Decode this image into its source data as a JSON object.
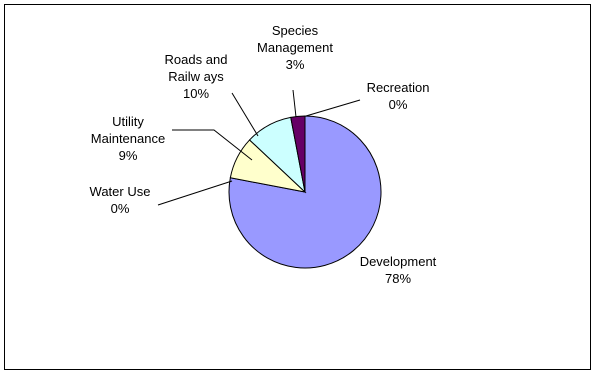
{
  "chart_data": {
    "type": "pie",
    "title": "",
    "slices": [
      {
        "name": "Development",
        "label_lines": [
          "Development",
          "78%"
        ],
        "percent": 78,
        "color": "#9999ff"
      },
      {
        "name": "Water Use",
        "label_lines": [
          "Water Use",
          "0%"
        ],
        "percent": 0,
        "color": "#663399"
      },
      {
        "name": "Utility Maintenance",
        "label_lines": [
          "Utility",
          "Maintenance",
          "9%"
        ],
        "percent": 9,
        "color": "#ffffcc"
      },
      {
        "name": "Roads and Railways",
        "label_lines": [
          "Roads and",
          "Railw ays",
          "10%"
        ],
        "percent": 10,
        "color": "#ccffff"
      },
      {
        "name": "Species Management",
        "label_lines": [
          "Species",
          "Management",
          "3%"
        ],
        "percent": 3,
        "color": "#660066"
      },
      {
        "name": "Recreation",
        "label_lines": [
          "Recreation",
          "0%"
        ],
        "percent": 0,
        "color": "#ff8080"
      }
    ],
    "legend": "none",
    "labels": "outside with leader lines"
  }
}
